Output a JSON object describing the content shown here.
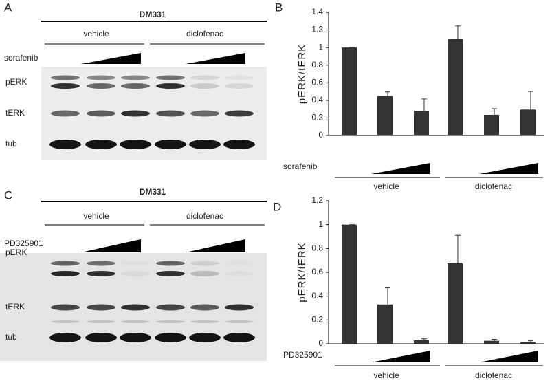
{
  "blots": [
    {
      "letter": "A",
      "title": "DM331",
      "groups": [
        "vehicle",
        "diclofenac"
      ],
      "treatment": "sorafenib",
      "rows": [
        "pERK",
        "tERK",
        "tub"
      ]
    },
    {
      "letter": "C",
      "title": "DM331",
      "groups": [
        "vehicle",
        "diclofenac"
      ],
      "treatment": "PD325901",
      "rows": [
        "pERK",
        "tERK",
        "tub"
      ]
    }
  ],
  "chart_data": [
    {
      "type": "bar",
      "letter": "B",
      "ylabel": "pERK/tERK",
      "categories": [
        null,
        null,
        null,
        null,
        null,
        null
      ],
      "values": [
        1,
        0.45,
        0.28,
        1.1,
        0.235,
        0.295
      ],
      "errors": [
        0,
        0.045,
        0.135,
        0.145,
        0.07,
        0.205
      ],
      "color": "#333333",
      "ylim": [
        0,
        1.4
      ],
      "yticks": [
        0,
        0.2,
        0.4,
        0.6,
        0.8,
        1,
        1.2,
        1.4
      ],
      "groups": [
        "vehicle",
        "diclofenac"
      ],
      "treatment": "sorafenib"
    },
    {
      "type": "bar",
      "letter": "D",
      "ylabel": "pERK/tERK",
      "categories": [
        null,
        null,
        null,
        null,
        null,
        null
      ],
      "values": [
        1,
        0.33,
        0.03,
        0.675,
        0.025,
        0.015
      ],
      "errors": [
        0,
        0.14,
        0.012,
        0.235,
        0.012,
        0.01
      ],
      "color": "#333333",
      "ylim": [
        0,
        1.2
      ],
      "yticks": [
        0,
        0.2,
        0.4,
        0.6,
        0.8,
        1,
        1.2
      ],
      "groups": [
        "vehicle",
        "diclofenac"
      ],
      "treatment": "PD325901"
    }
  ]
}
